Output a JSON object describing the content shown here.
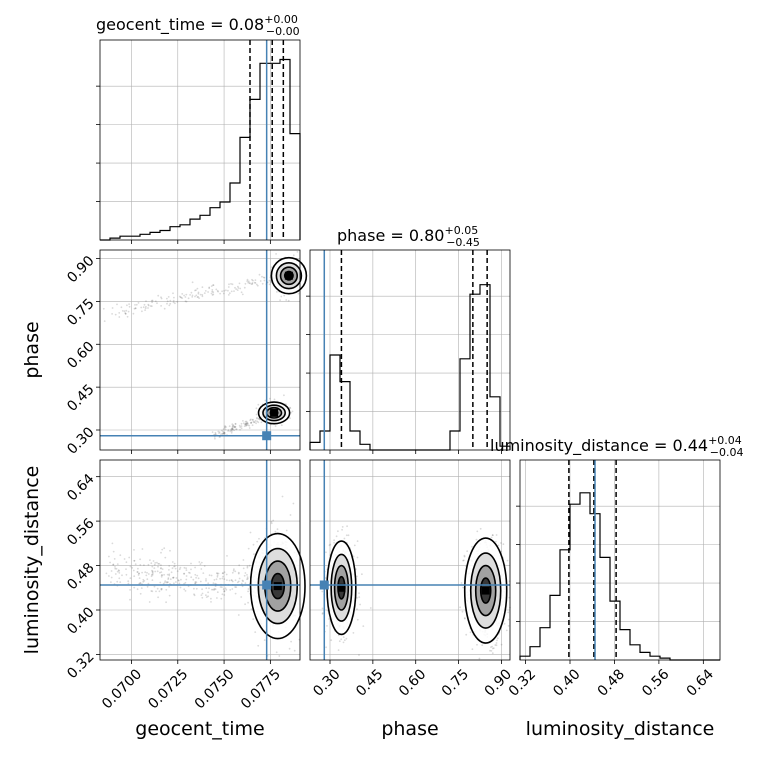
{
  "chart_data": {
    "type": "corner",
    "parameters": [
      "geocent_time",
      "phase",
      "luminosity_distance"
    ],
    "truths": {
      "geocent_time": 0.0773,
      "phase": 0.28,
      "luminosity_distance": 0.445
    },
    "ranges": {
      "geocent_time": [
        0.0683,
        0.0791
      ],
      "phase": [
        0.23,
        0.93
      ],
      "luminosity_distance": [
        0.31,
        0.67
      ]
    },
    "ticks": {
      "geocent_time": {
        "values": [
          0.07,
          0.0725,
          0.075,
          0.0775
        ],
        "labels": [
          "0.0700",
          "0.0725",
          "0.0750",
          "0.0775"
        ]
      },
      "phase": {
        "values": [
          0.3,
          0.45,
          0.6,
          0.75,
          0.9
        ],
        "labels": [
          "0.30",
          "0.45",
          "0.60",
          "0.75",
          "0.90"
        ]
      },
      "luminosity_distance": {
        "values": [
          0.32,
          0.4,
          0.48,
          0.56,
          0.64
        ],
        "labels": [
          "0.32",
          "0.40",
          "0.48",
          "0.56",
          "0.64"
        ]
      }
    },
    "titles": [
      {
        "name": "geocent_time",
        "text": "geocent_time = 0.08",
        "sup": "+0.00",
        "sub": "−0.00"
      },
      {
        "name": "phase",
        "text": "phase = 0.80",
        "sup": "+0.05",
        "sub": "−0.45"
      },
      {
        "name": "luminosity_distance",
        "text": "luminosity_distance = 0.44",
        "sup": "+0.04",
        "sub": "−0.04"
      }
    ],
    "axis_labels": {
      "geocent_time": "geocent_time",
      "phase": "phase",
      "luminosity_distance": "luminosity_distance"
    },
    "histograms": {
      "geocent_time": {
        "edges": [
          0.0683,
          0.06884,
          0.06938,
          0.06992,
          0.07046,
          0.071,
          0.07154,
          0.07208,
          0.07262,
          0.07316,
          0.0737,
          0.07424,
          0.07478,
          0.07532,
          0.07586,
          0.0764,
          0.07694,
          0.07748,
          0.07802,
          0.07856,
          0.0791
        ],
        "counts": [
          0,
          0.01,
          0.02,
          0.02,
          0.03,
          0.04,
          0.05,
          0.07,
          0.08,
          0.11,
          0.13,
          0.17,
          0.2,
          0.3,
          0.54,
          0.74,
          0.93,
          0.93,
          0.95,
          0.56
        ]
      },
      "phase": {
        "edges": [
          0.23,
          0.265,
          0.3,
          0.335,
          0.37,
          0.405,
          0.44,
          0.475,
          0.51,
          0.545,
          0.58,
          0.615,
          0.65,
          0.685,
          0.72,
          0.755,
          0.79,
          0.825,
          0.86,
          0.895,
          0.93
        ],
        "counts": [
          0.04,
          0.1,
          0.5,
          0.36,
          0.1,
          0.03,
          0,
          0,
          0,
          0,
          0,
          0,
          0,
          0,
          0.1,
          0.48,
          0.82,
          0.87,
          0.28,
          0.02
        ]
      },
      "luminosity_distance": {
        "edges": [
          0.31,
          0.328,
          0.346,
          0.364,
          0.382,
          0.4,
          0.418,
          0.436,
          0.454,
          0.472,
          0.49,
          0.508,
          0.526,
          0.544,
          0.562,
          0.58,
          0.598,
          0.616,
          0.634,
          0.652,
          0.67
        ],
        "counts": [
          0.02,
          0.07,
          0.17,
          0.34,
          0.58,
          0.82,
          0.88,
          0.77,
          0.54,
          0.31,
          0.16,
          0.08,
          0.04,
          0.02,
          0.01,
          0,
          0,
          0,
          0,
          0
        ],
        "quantiles": [
          0.398,
          0.443,
          0.483
        ]
      }
    },
    "quantile_lines": {
      "geocent_time": [
        0.0764,
        0.0776,
        0.0782
      ],
      "phase": [
        0.34,
        0.8,
        0.85
      ],
      "luminosity_distance": [
        0.398,
        0.443,
        0.483
      ]
    },
    "contour_centers": {
      "geocent_time_vs_phase": [
        {
          "x": 0.0785,
          "y": 0.84
        },
        {
          "x": 0.0776,
          "y": 0.36
        }
      ],
      "geocent_time_vs_luminosity_distance": [
        {
          "x": 0.0778,
          "y": 0.442
        }
      ],
      "phase_vs_luminosity_distance": [
        {
          "x": 0.34,
          "y": 0.44
        },
        {
          "x": 0.85,
          "y": 0.43
        }
      ]
    },
    "grid": true,
    "colors": {
      "truth": "#4682b4",
      "hist": "#000000",
      "grid": "#b0b0b0",
      "scatter": "#555555"
    }
  }
}
